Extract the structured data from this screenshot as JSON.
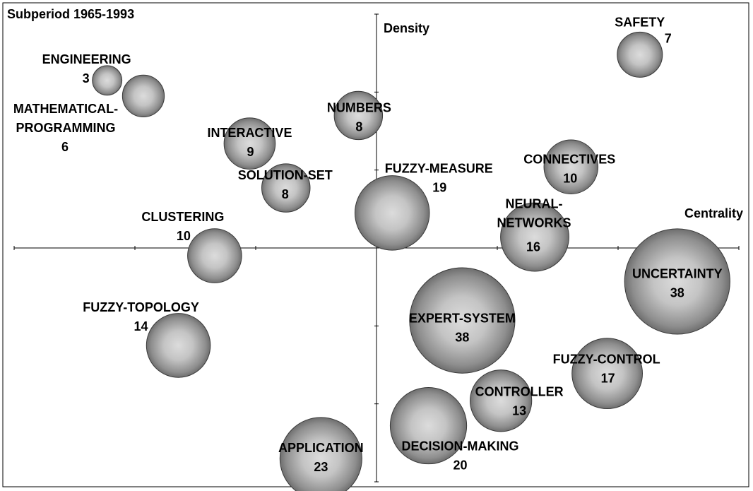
{
  "chart_data": {
    "type": "scatter",
    "title": "Subperiod 1965-1993",
    "xlabel": "Centrality",
    "ylabel": "Density",
    "xlim": [
      -3.0,
      3.0
    ],
    "ylim": [
      -3.0,
      3.0
    ],
    "grid": false,
    "points": [
      {
        "label": "SAFETY",
        "count": "7",
        "x": 2.18,
        "y": 2.48,
        "size": 7
      },
      {
        "label": "ENGINEERING",
        "count": "3",
        "x": -2.23,
        "y": 2.15,
        "size": 3
      },
      {
        "label": "MATHEMATICAL-PROGRAMMING",
        "count": "6",
        "x": -1.93,
        "y": 1.95,
        "size": 6
      },
      {
        "label": "NUMBERS",
        "count": "8",
        "x": -0.15,
        "y": 1.7,
        "size": 8
      },
      {
        "label": "INTERACTIVE",
        "count": "9",
        "x": -1.05,
        "y": 1.34,
        "size": 9
      },
      {
        "label": "SOLUTION-SET",
        "count": "8",
        "x": -0.75,
        "y": 0.77,
        "size": 8
      },
      {
        "label": "CONNECTIVES",
        "count": "10",
        "x": 1.61,
        "y": 1.04,
        "size": 10
      },
      {
        "label": "FUZZY-MEASURE",
        "count": "19",
        "x": 0.13,
        "y": 0.45,
        "size": 19
      },
      {
        "label": "NEURAL-NETWORKS",
        "count": "16",
        "x": 1.31,
        "y": 0.14,
        "size": 16
      },
      {
        "label": "CLUSTERING",
        "count": "10",
        "x": -1.34,
        "y": -0.1,
        "size": 10
      },
      {
        "label": "UNCERTAINTY",
        "count": "38",
        "x": 2.49,
        "y": -0.43,
        "size": 38
      },
      {
        "label": "EXPERT-SYSTEM",
        "count": "38",
        "x": 0.71,
        "y": -0.93,
        "size": 38
      },
      {
        "label": "FUZZY-TOPOLOGY",
        "count": "14",
        "x": -1.64,
        "y": -1.25,
        "size": 14
      },
      {
        "label": "FUZZY-CONTROL",
        "count": "17",
        "x": 1.91,
        "y": -1.61,
        "size": 17
      },
      {
        "label": "CONTROLLER",
        "count": "13",
        "x": 1.03,
        "y": -1.96,
        "size": 13
      },
      {
        "label": "DECISION-MAKING",
        "count": "20",
        "x": 0.43,
        "y": -2.28,
        "size": 20
      },
      {
        "label": "APPLICATION",
        "count": "23",
        "x": -0.46,
        "y": -2.7,
        "size": 23
      }
    ]
  }
}
